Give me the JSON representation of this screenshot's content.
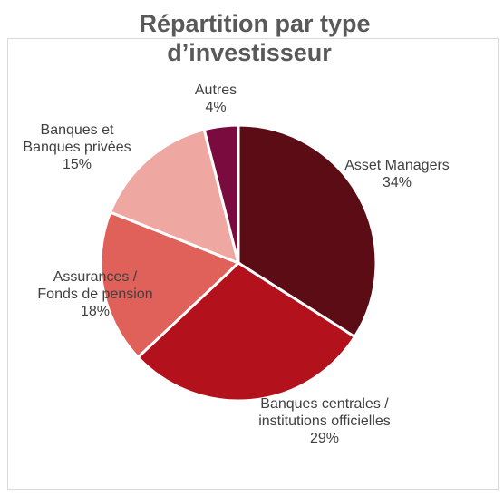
{
  "chart_data": {
    "type": "pie",
    "title": "Répartition par type\nd’investisseur",
    "categories": [
      "Asset Managers",
      "Banques centrales /\ninstitutions officielles",
      "Assurances /\nFonds de pension",
      "Banques et\nBanques privées",
      "Autres"
    ],
    "values": [
      34,
      29,
      18,
      15,
      4
    ],
    "value_labels": [
      "34%",
      "29%",
      "18%",
      "15%",
      "4%"
    ],
    "colors": [
      "#5c0c14",
      "#b3111c",
      "#e0605a",
      "#efa7a1",
      "#7a0b3e"
    ]
  }
}
